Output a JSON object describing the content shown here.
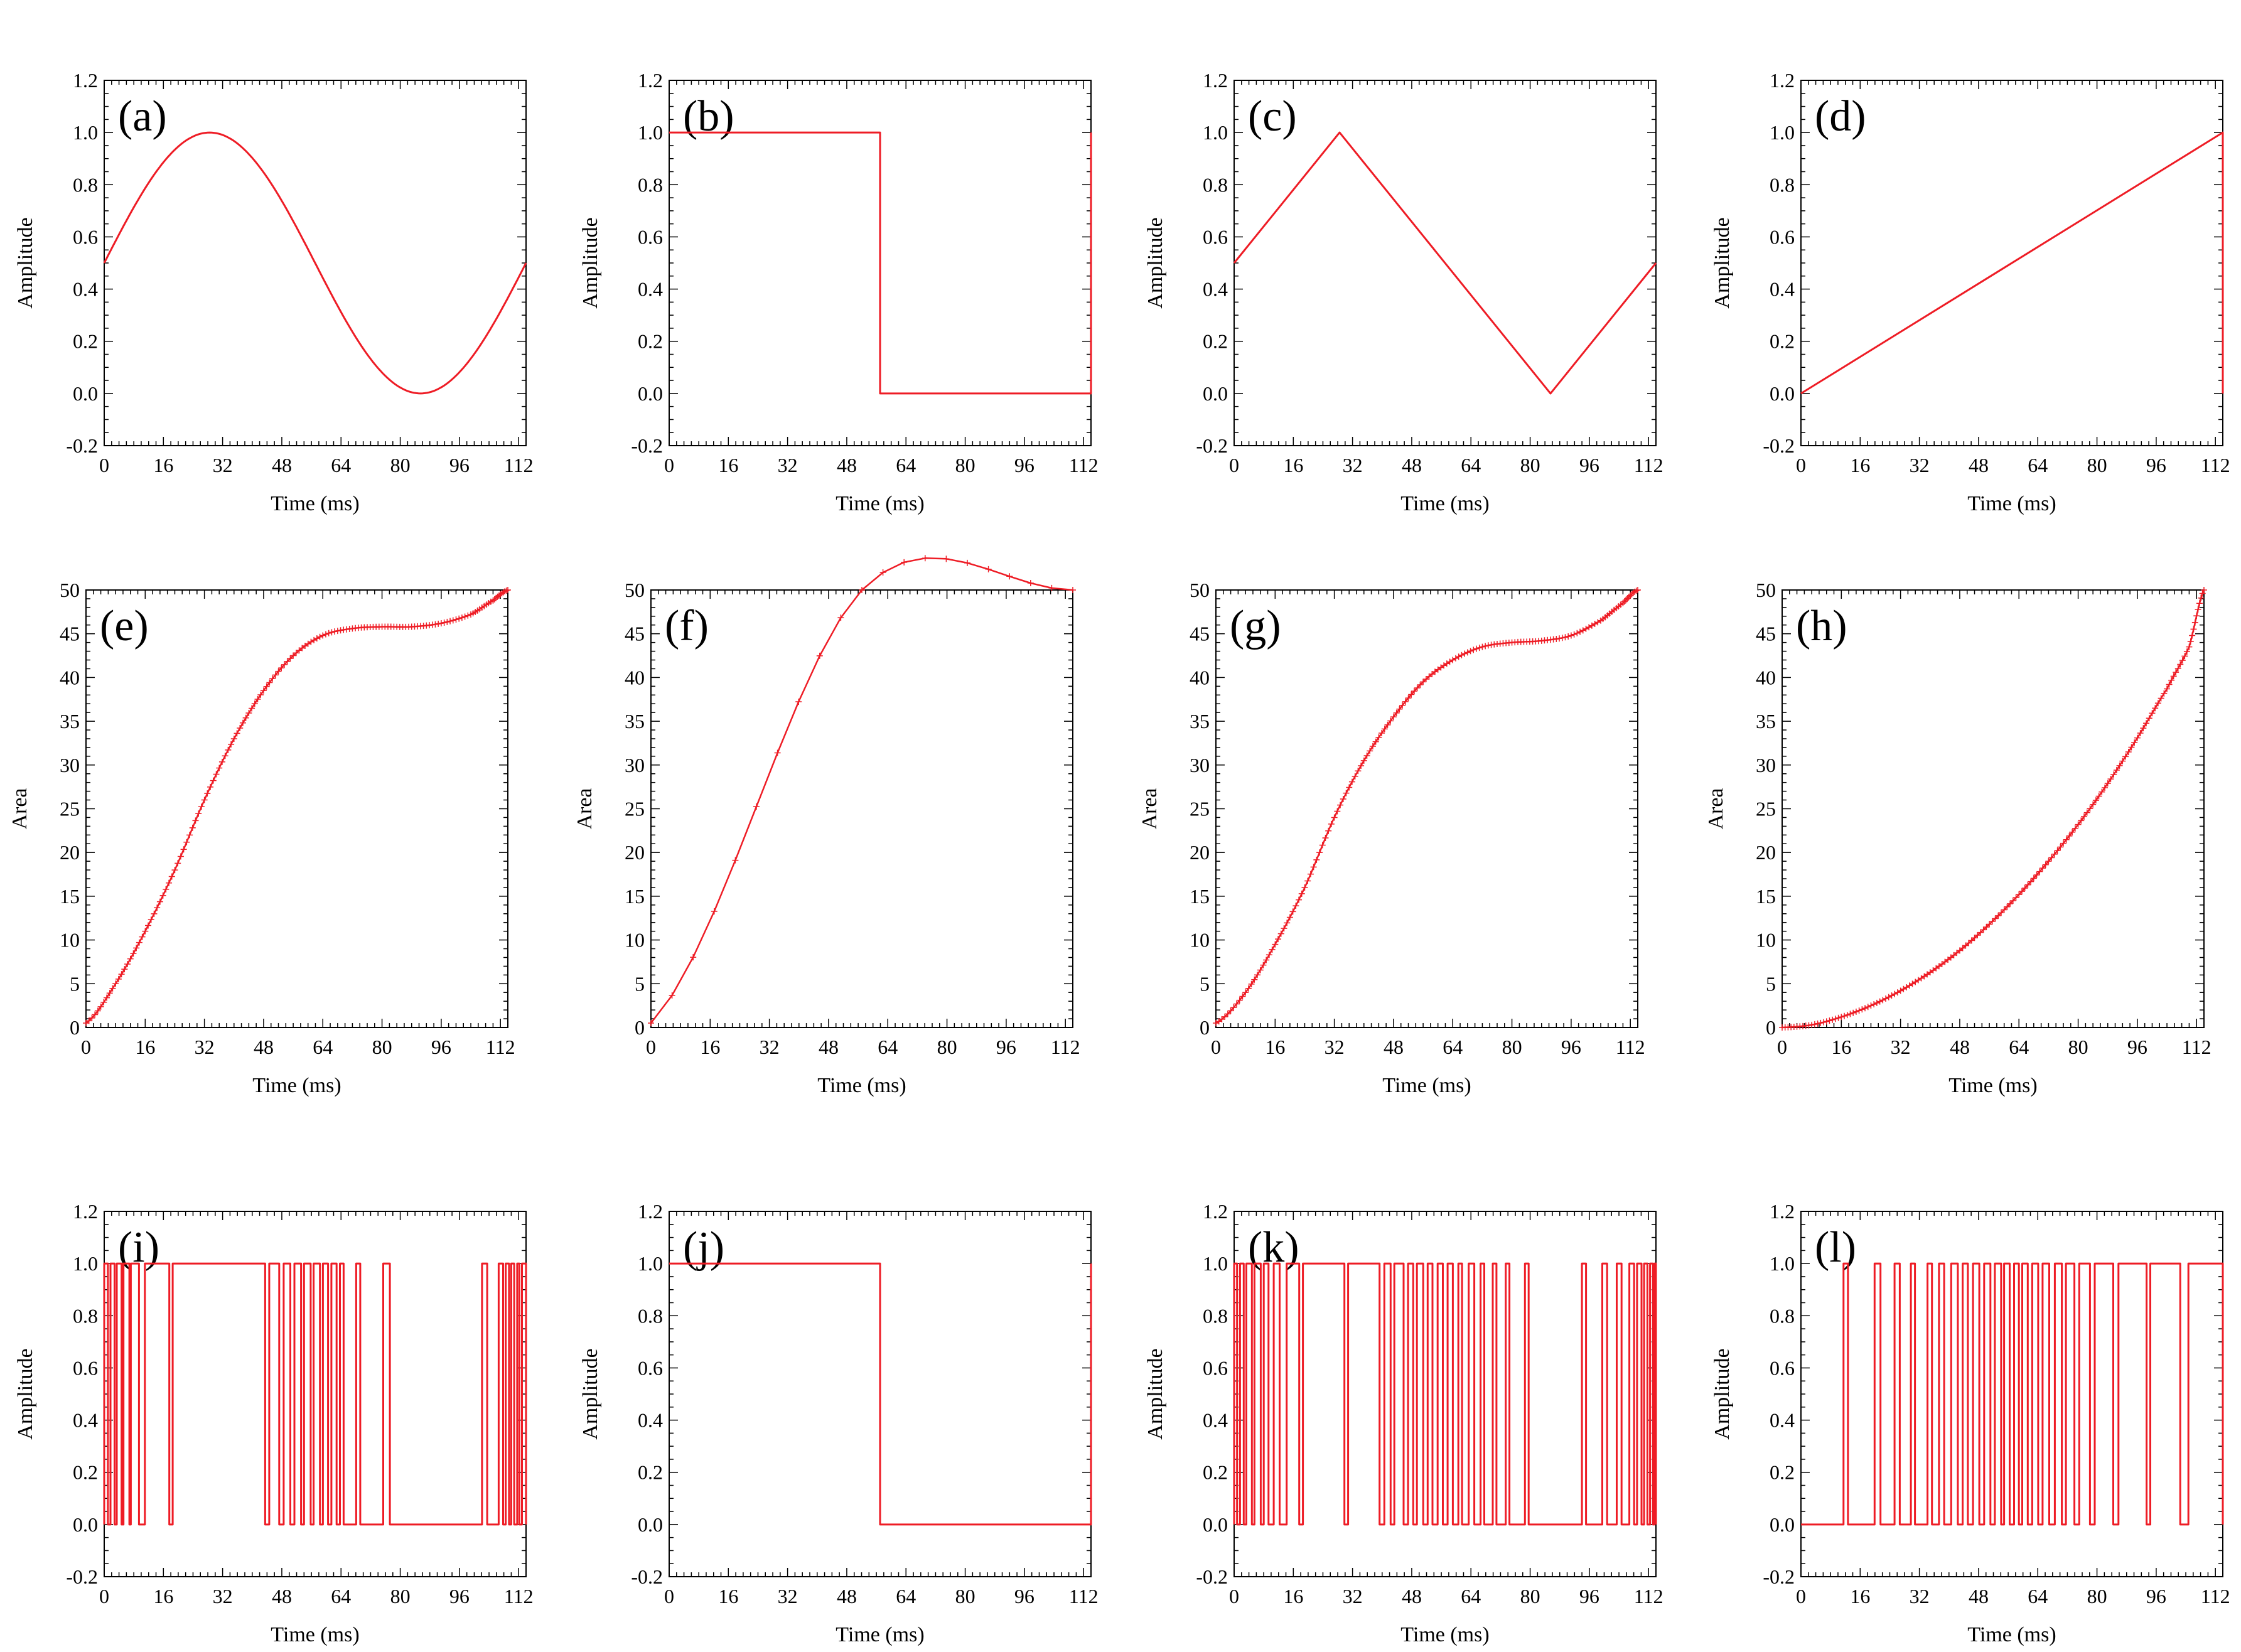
{
  "colors": {
    "series": "#ee1c25",
    "axis": "#000000",
    "background": "#ffffff"
  },
  "chart_data": [
    {
      "id": "a",
      "panel_label": "(a)",
      "type": "line",
      "kind": "sine",
      "xlabel": "Time (ms)",
      "ylabel": "Amplitude",
      "xlim": [
        0,
        114
      ],
      "ylim": [
        -0.2,
        1.2
      ],
      "xticks": [
        0,
        16,
        32,
        48,
        64,
        80,
        96,
        112
      ],
      "yticks": [
        -0.2,
        0.0,
        0.2,
        0.4,
        0.6,
        0.8,
        1.0,
        1.2
      ],
      "yticklabels": [
        "-0.2",
        "0.0",
        "0.2",
        "0.4",
        "0.6",
        "0.8",
        "1.0",
        "1.2"
      ],
      "x": [
        0,
        9.5,
        19,
        28.5,
        38,
        47.5,
        57,
        66.5,
        76,
        85.5,
        95,
        104.5,
        114
      ],
      "y": [
        0.5,
        0.75,
        0.933,
        1.0,
        0.933,
        0.75,
        0.5,
        0.25,
        0.067,
        0.0,
        0.067,
        0.25,
        0.5
      ]
    },
    {
      "id": "b",
      "panel_label": "(b)",
      "type": "line",
      "kind": "square",
      "xlabel": "Time (ms)",
      "ylabel": "Amplitude",
      "xlim": [
        0,
        114
      ],
      "ylim": [
        -0.2,
        1.2
      ],
      "xticks": [
        0,
        16,
        32,
        48,
        64,
        80,
        96,
        112
      ],
      "yticks": [
        -0.2,
        0.0,
        0.2,
        0.4,
        0.6,
        0.8,
        1.0,
        1.2
      ],
      "yticklabels": [
        "-0.2",
        "0.0",
        "0.2",
        "0.4",
        "0.6",
        "0.8",
        "1.0",
        "1.2"
      ],
      "x": [
        0,
        57,
        57,
        114,
        114
      ],
      "y": [
        1,
        1,
        0,
        0,
        1
      ]
    },
    {
      "id": "c",
      "panel_label": "(c)",
      "type": "line",
      "kind": "triangle",
      "xlabel": "Time (ms)",
      "ylabel": "Amplitude",
      "xlim": [
        0,
        114
      ],
      "ylim": [
        -0.2,
        1.2
      ],
      "xticks": [
        0,
        16,
        32,
        48,
        64,
        80,
        96,
        112
      ],
      "yticks": [
        -0.2,
        0.0,
        0.2,
        0.4,
        0.6,
        0.8,
        1.0,
        1.2
      ],
      "yticklabels": [
        "-0.2",
        "0.0",
        "0.2",
        "0.4",
        "0.6",
        "0.8",
        "1.0",
        "1.2"
      ],
      "x": [
        0,
        28.5,
        85.5,
        114
      ],
      "y": [
        0.5,
        1.0,
        0.0,
        0.5
      ]
    },
    {
      "id": "d",
      "panel_label": "(d)",
      "type": "line",
      "kind": "sawtooth",
      "xlabel": "Time (ms)",
      "ylabel": "Amplitude",
      "xlim": [
        0,
        114
      ],
      "ylim": [
        -0.2,
        1.2
      ],
      "xticks": [
        0,
        16,
        32,
        48,
        64,
        80,
        96,
        112
      ],
      "yticks": [
        -0.2,
        0.0,
        0.2,
        0.4,
        0.6,
        0.8,
        1.0,
        1.2
      ],
      "yticklabels": [
        "-0.2",
        "0.0",
        "0.2",
        "0.4",
        "0.6",
        "0.8",
        "1.0",
        "1.2"
      ],
      "x": [
        0,
        114,
        114
      ],
      "y": [
        0,
        1,
        0
      ]
    },
    {
      "id": "e",
      "panel_label": "(e)",
      "type": "line",
      "kind": "area",
      "xlabel": "Time (ms)",
      "ylabel": "Area",
      "xlim": [
        0,
        114
      ],
      "ylim": [
        0,
        50
      ],
      "xticks": [
        0,
        16,
        32,
        48,
        64,
        80,
        96,
        112
      ],
      "yticks": [
        0,
        5,
        10,
        15,
        20,
        25,
        30,
        35,
        40,
        45,
        50
      ],
      "yticklabels": [
        "0",
        "5",
        "10",
        "15",
        "20",
        "25",
        "30",
        "35",
        "40",
        "45",
        "50"
      ],
      "x": [
        0,
        8,
        16,
        24,
        32,
        40,
        48,
        56,
        64,
        72,
        80,
        88,
        96,
        104,
        110,
        114
      ],
      "y": [
        0.5,
        5,
        11,
        18,
        26,
        33,
        38.5,
        42.5,
        44.8,
        45.6,
        45.8,
        45.8,
        46.2,
        47.2,
        48.8,
        50
      ]
    },
    {
      "id": "f",
      "panel_label": "(f)",
      "type": "line",
      "kind": "area",
      "xlabel": "Time (ms)",
      "ylabel": "Area",
      "xlim": [
        0,
        114
      ],
      "ylim": [
        0,
        50
      ],
      "xticks": [
        0,
        16,
        32,
        48,
        64,
        80,
        96,
        112
      ],
      "yticks": [
        0,
        5,
        10,
        15,
        20,
        25,
        30,
        35,
        40,
        45,
        50
      ],
      "yticklabels": [
        "0",
        "5",
        "10",
        "15",
        "20",
        "25",
        "30",
        "35",
        "40",
        "45",
        "50"
      ],
      "x": [
        0,
        57,
        114
      ],
      "y": [
        0.5,
        50,
        50
      ]
    },
    {
      "id": "g",
      "panel_label": "(g)",
      "type": "line",
      "kind": "area",
      "xlabel": "Time (ms)",
      "ylabel": "Area",
      "xlim": [
        0,
        114
      ],
      "ylim": [
        0,
        50
      ],
      "xticks": [
        0,
        16,
        32,
        48,
        64,
        80,
        96,
        112
      ],
      "yticks": [
        0,
        5,
        10,
        15,
        20,
        25,
        30,
        35,
        40,
        45,
        50
      ],
      "yticklabels": [
        "0",
        "5",
        "10",
        "15",
        "20",
        "25",
        "30",
        "35",
        "40",
        "45",
        "50"
      ],
      "x": [
        0,
        8,
        16,
        24,
        32,
        40,
        48,
        56,
        64,
        72,
        80,
        88,
        96,
        104,
        110,
        114
      ],
      "y": [
        0.5,
        4,
        9.5,
        16,
        24,
        30.5,
        35.5,
        39.5,
        42,
        43.5,
        44,
        44.2,
        44.8,
        46.5,
        48.5,
        50
      ]
    },
    {
      "id": "h",
      "panel_label": "(h)",
      "type": "line",
      "kind": "area",
      "xlabel": "Time (ms)",
      "ylabel": "Area",
      "xlim": [
        0,
        114
      ],
      "ylim": [
        0,
        50
      ],
      "xticks": [
        0,
        16,
        32,
        48,
        64,
        80,
        96,
        112
      ],
      "yticks": [
        0,
        5,
        10,
        15,
        20,
        25,
        30,
        35,
        40,
        45,
        50
      ],
      "yticklabels": [
        "0",
        "5",
        "10",
        "15",
        "20",
        "25",
        "30",
        "35",
        "40",
        "45",
        "50"
      ],
      "x": [
        0,
        8,
        16,
        24,
        32,
        40,
        48,
        56,
        64,
        72,
        80,
        88,
        96,
        104,
        110,
        114
      ],
      "y": [
        0,
        0.3,
        1.2,
        2.5,
        4.2,
        6.3,
        8.8,
        11.8,
        15.2,
        19,
        23.2,
        27.9,
        33.1,
        38.7,
        43.5,
        50
      ]
    },
    {
      "id": "i",
      "panel_label": "(i)",
      "type": "line",
      "kind": "pwm",
      "xlabel": "Time (ms)",
      "ylabel": "Amplitude",
      "xlim": [
        0,
        114
      ],
      "ylim": [
        -0.2,
        1.2
      ],
      "xticks": [
        0,
        16,
        32,
        48,
        64,
        80,
        96,
        112
      ],
      "yticks": [
        -0.2,
        0.0,
        0.2,
        0.4,
        0.6,
        0.8,
        1.0,
        1.2
      ],
      "yticklabels": [
        "-0.2",
        "0.0",
        "0.2",
        "0.4",
        "0.6",
        "0.8",
        "1.0",
        "1.2"
      ],
      "high_intervals": [
        [
          0,
          1.0
        ],
        [
          1.7,
          2.8
        ],
        [
          3.4,
          4.7
        ],
        [
          5.2,
          6.8
        ],
        [
          7.2,
          9.4
        ],
        [
          11,
          17.6
        ],
        [
          18.5,
          43.5
        ],
        [
          44.6,
          47.3
        ],
        [
          48.5,
          50.3
        ],
        [
          51.4,
          53.2
        ],
        [
          54,
          55.8
        ],
        [
          56.6,
          58.3
        ],
        [
          59.1,
          60.5
        ],
        [
          61.4,
          62.8
        ],
        [
          63.7,
          64.7
        ],
        [
          68.1,
          69.2
        ],
        [
          75.4,
          77.2
        ],
        [
          102.1,
          103.5
        ],
        [
          106.6,
          107.8
        ],
        [
          108.5,
          109.4
        ],
        [
          110,
          110.8
        ],
        [
          111.6,
          112.2
        ],
        [
          112.9,
          114
        ]
      ]
    },
    {
      "id": "j",
      "panel_label": "(j)",
      "type": "line",
      "kind": "square",
      "xlabel": "Time (ms)",
      "ylabel": "Amplitude",
      "xlim": [
        0,
        114
      ],
      "ylim": [
        -0.2,
        1.2
      ],
      "xticks": [
        0,
        16,
        32,
        48,
        64,
        80,
        96,
        112
      ],
      "yticks": [
        -0.2,
        0.0,
        0.2,
        0.4,
        0.6,
        0.8,
        1.0,
        1.2
      ],
      "yticklabels": [
        "-0.2",
        "0.0",
        "0.2",
        "0.4",
        "0.6",
        "0.8",
        "1.0",
        "1.2"
      ],
      "x": [
        0,
        57,
        57,
        114,
        114
      ],
      "y": [
        1,
        1,
        0,
        0,
        1
      ]
    },
    {
      "id": "k",
      "panel_label": "(k)",
      "type": "line",
      "kind": "pwm",
      "xlabel": "Time (ms)",
      "ylabel": "Amplitude",
      "xlim": [
        0,
        114
      ],
      "ylim": [
        -0.2,
        1.2
      ],
      "xticks": [
        0,
        16,
        32,
        48,
        64,
        80,
        96,
        112
      ],
      "yticks": [
        -0.2,
        0.0,
        0.2,
        0.4,
        0.6,
        0.8,
        1.0,
        1.2
      ],
      "yticklabels": [
        "-0.2",
        "0.0",
        "0.2",
        "0.4",
        "0.6",
        "0.8",
        "1.0",
        "1.2"
      ],
      "high_intervals": [
        [
          0,
          0.8
        ],
        [
          1.6,
          2.6
        ],
        [
          3.3,
          4.8
        ],
        [
          5.5,
          7.2
        ],
        [
          8,
          9.3
        ],
        [
          10.7,
          12.3
        ],
        [
          14.2,
          17.6
        ],
        [
          18.6,
          29.8
        ],
        [
          30.8,
          39.3
        ],
        [
          40.6,
          42.3
        ],
        [
          43.3,
          45.8
        ],
        [
          47,
          48.4
        ],
        [
          49.4,
          51.1
        ],
        [
          52.3,
          53.6
        ],
        [
          55,
          56.4
        ],
        [
          57.7,
          59.1
        ],
        [
          60.6,
          61.6
        ],
        [
          63.4,
          64.9
        ],
        [
          66.6,
          67.6
        ],
        [
          69.9,
          70.9
        ],
        [
          73.4,
          74.4
        ],
        [
          78.6,
          79.6
        ],
        [
          94,
          95.1
        ],
        [
          99.5,
          100.8
        ],
        [
          103.4,
          104.7
        ],
        [
          106.8,
          108.1
        ],
        [
          108.9,
          110.1
        ],
        [
          110.8,
          111.7
        ],
        [
          112.4,
          113.2
        ],
        [
          113.6,
          114
        ]
      ]
    },
    {
      "id": "l",
      "panel_label": "(l)",
      "type": "line",
      "kind": "pwm",
      "xlabel": "Time (ms)",
      "ylabel": "Amplitude",
      "xlim": [
        0,
        114
      ],
      "ylim": [
        -0.2,
        1.2
      ],
      "xticks": [
        0,
        16,
        32,
        48,
        64,
        80,
        96,
        112
      ],
      "yticks": [
        -0.2,
        0.0,
        0.2,
        0.4,
        0.6,
        0.8,
        1.0,
        1.2
      ],
      "yticklabels": [
        "-0.2",
        "0.0",
        "0.2",
        "0.4",
        "0.6",
        "0.8",
        "1.0",
        "1.2"
      ],
      "high_intervals": [
        [
          11.5,
          12.7
        ],
        [
          19.9,
          21.5
        ],
        [
          25.3,
          26.7
        ],
        [
          29.7,
          30.8
        ],
        [
          34.2,
          35.4
        ],
        [
          37.3,
          38.7
        ],
        [
          40.6,
          42.4
        ],
        [
          43.7,
          45.1
        ],
        [
          46.5,
          48.2
        ],
        [
          49.5,
          51.2
        ],
        [
          52.4,
          54.1
        ],
        [
          54.9,
          56.4
        ],
        [
          57.6,
          58.9
        ],
        [
          59.8,
          61.3
        ],
        [
          62.5,
          64.1
        ],
        [
          65.3,
          67.1
        ],
        [
          68.6,
          70.5
        ],
        [
          71.6,
          73.9
        ],
        [
          75.2,
          78.1
        ],
        [
          79.4,
          84.4
        ],
        [
          85.8,
          93.4
        ],
        [
          94.4,
          102.5
        ],
        [
          104.7,
          114
        ]
      ]
    }
  ]
}
